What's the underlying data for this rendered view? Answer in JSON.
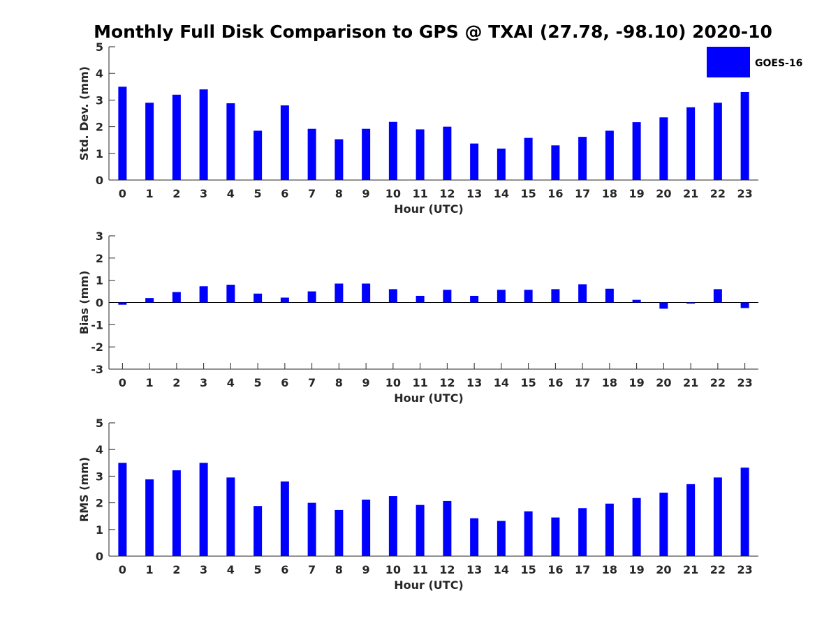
{
  "title": "Monthly Full Disk Comparison to GPS @ TXAI (27.78, -98.10) 2020-10",
  "legend": {
    "label": "GOES-16",
    "color": "#0000ff"
  },
  "bar_color": "#0000ff",
  "chart_data": [
    {
      "type": "bar",
      "name": "std-dev",
      "categories": [
        "0",
        "1",
        "2",
        "3",
        "4",
        "5",
        "6",
        "7",
        "8",
        "9",
        "10",
        "11",
        "12",
        "13",
        "14",
        "15",
        "16",
        "17",
        "18",
        "19",
        "20",
        "21",
        "22",
        "23"
      ],
      "series": [
        {
          "name": "GOES-16",
          "values": [
            3.5,
            2.9,
            3.2,
            3.4,
            2.88,
            1.85,
            2.8,
            1.92,
            1.53,
            1.92,
            2.18,
            1.9,
            2.0,
            1.37,
            1.18,
            1.58,
            1.3,
            1.62,
            1.85,
            2.17,
            2.35,
            2.73,
            2.9,
            3.3
          ]
        }
      ],
      "xlabel": "Hour (UTC)",
      "ylabel": "Std. Dev. (mm)",
      "ylim": [
        0,
        5
      ],
      "yticks": [
        "0",
        "1",
        "2",
        "3",
        "4",
        "5"
      ],
      "grid": false
    },
    {
      "type": "bar",
      "name": "bias",
      "categories": [
        "0",
        "1",
        "2",
        "3",
        "4",
        "5",
        "6",
        "7",
        "8",
        "9",
        "10",
        "11",
        "12",
        "13",
        "14",
        "15",
        "16",
        "17",
        "18",
        "19",
        "20",
        "21",
        "22",
        "23"
      ],
      "series": [
        {
          "name": "GOES-16",
          "values": [
            -0.1,
            0.2,
            0.47,
            0.73,
            0.8,
            0.4,
            0.22,
            0.5,
            0.85,
            0.85,
            0.6,
            0.3,
            0.57,
            0.3,
            0.57,
            0.57,
            0.6,
            0.82,
            0.62,
            0.12,
            -0.28,
            -0.05,
            0.6,
            -0.25
          ]
        }
      ],
      "xlabel": "Hour (UTC)",
      "ylabel": "Bias (mm)",
      "ylim": [
        -3,
        3
      ],
      "yticks": [
        "-3",
        "-2",
        "-1",
        "0",
        "1",
        "2",
        "3"
      ],
      "grid": false,
      "zero_line": true
    },
    {
      "type": "bar",
      "name": "rms",
      "categories": [
        "0",
        "1",
        "2",
        "3",
        "4",
        "5",
        "6",
        "7",
        "8",
        "9",
        "10",
        "11",
        "12",
        "13",
        "14",
        "15",
        "16",
        "17",
        "18",
        "19",
        "20",
        "21",
        "22",
        "23"
      ],
      "series": [
        {
          "name": "GOES-16",
          "values": [
            3.5,
            2.88,
            3.22,
            3.5,
            2.95,
            1.88,
            2.8,
            2.0,
            1.73,
            2.12,
            2.25,
            1.92,
            2.07,
            1.42,
            1.32,
            1.68,
            1.45,
            1.8,
            1.97,
            2.18,
            2.38,
            2.7,
            2.95,
            3.32
          ]
        }
      ],
      "xlabel": "Hour (UTC)",
      "ylabel": "RMS (mm)",
      "ylim": [
        0,
        5
      ],
      "yticks": [
        "0",
        "1",
        "2",
        "3",
        "4",
        "5"
      ],
      "grid": false
    }
  ]
}
